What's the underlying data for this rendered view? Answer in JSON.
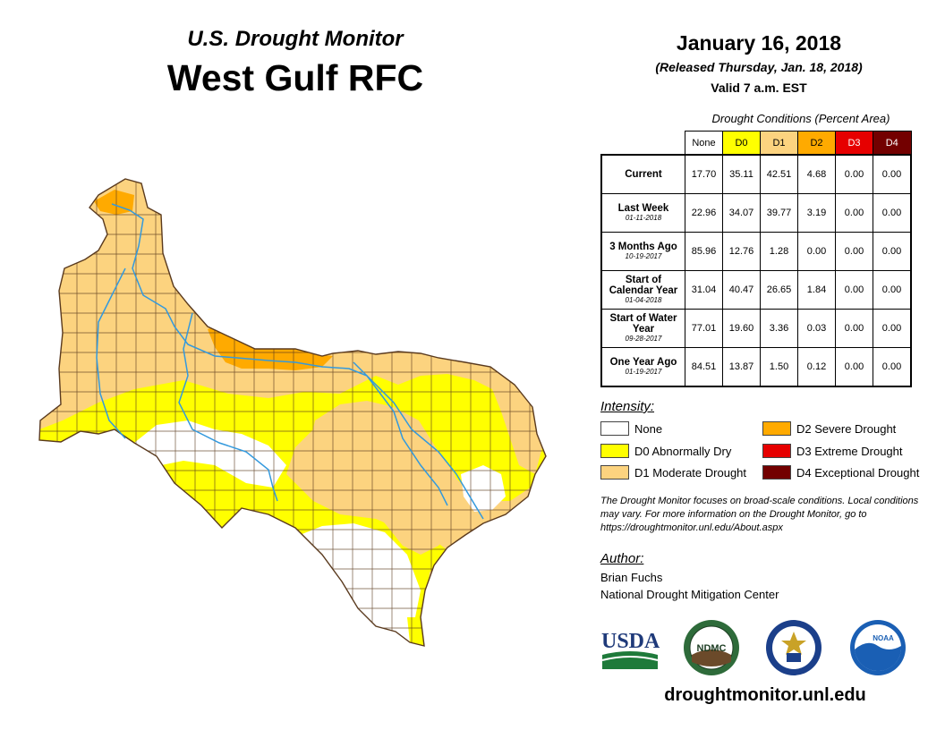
{
  "header": {
    "subtitle": "U.S. Drought Monitor",
    "title": "West Gulf RFC",
    "date": "January 16, 2018",
    "released": "(Released Thursday, Jan. 18, 2018)",
    "valid": "Valid 7 a.m. EST"
  },
  "table": {
    "caption": "Drought Conditions (Percent Area)",
    "columns": [
      {
        "label": "None",
        "color": "#ffffff",
        "text_color": "#000000"
      },
      {
        "label": "D0",
        "color": "#ffff00",
        "text_color": "#000000"
      },
      {
        "label": "D1",
        "color": "#fcd37f",
        "text_color": "#000000"
      },
      {
        "label": "D2",
        "color": "#ffaa00",
        "text_color": "#000000"
      },
      {
        "label": "D3",
        "color": "#e60000",
        "text_color": "#ffffff"
      },
      {
        "label": "D4",
        "color": "#730000",
        "text_color": "#ffffff"
      }
    ],
    "rows": [
      {
        "label": "Current",
        "date": "",
        "values": [
          "17.70",
          "35.11",
          "42.51",
          "4.68",
          "0.00",
          "0.00"
        ]
      },
      {
        "label": "Last Week",
        "date": "01-11-2018",
        "values": [
          "22.96",
          "34.07",
          "39.77",
          "3.19",
          "0.00",
          "0.00"
        ]
      },
      {
        "label": "3 Months Ago",
        "date": "10-19-2017",
        "values": [
          "85.96",
          "12.76",
          "1.28",
          "0.00",
          "0.00",
          "0.00"
        ]
      },
      {
        "label": "Start of Calendar Year",
        "date": "01-04-2018",
        "values": [
          "31.04",
          "40.47",
          "26.65",
          "1.84",
          "0.00",
          "0.00"
        ]
      },
      {
        "label": "Start of Water Year",
        "date": "09-28-2017",
        "values": [
          "77.01",
          "19.60",
          "3.36",
          "0.03",
          "0.00",
          "0.00"
        ]
      },
      {
        "label": "One Year Ago",
        "date": "01-19-2017",
        "values": [
          "84.51",
          "13.87",
          "1.50",
          "0.12",
          "0.00",
          "0.00"
        ]
      }
    ]
  },
  "legend": {
    "title": "Intensity:",
    "items": [
      {
        "label": "None",
        "color": "#ffffff"
      },
      {
        "label": "D0 Abnormally Dry",
        "color": "#ffff00"
      },
      {
        "label": "D1 Moderate Drought",
        "color": "#fcd37f"
      },
      {
        "label": "D2 Severe Drought",
        "color": "#ffaa00"
      },
      {
        "label": "D3 Extreme Drought",
        "color": "#e60000"
      },
      {
        "label": "D4 Exceptional Drought",
        "color": "#730000"
      }
    ]
  },
  "note": "The Drought Monitor focuses on broad-scale conditions. Local conditions may vary. For more information on the Drought Monitor, go to https://droughtmonitor.unl.edu/About.aspx",
  "author": {
    "title": "Author:",
    "name": "Brian Fuchs",
    "org": "National Drought Mitigation Center"
  },
  "logos": {
    "usda": "USDA",
    "ndmc": "NDMC",
    "noaa": "NOAA"
  },
  "website": "droughtmonitor.unl.edu",
  "map_colors": {
    "none": "#ffffff",
    "d0": "#ffff00",
    "d1": "#fcd37f",
    "d2": "#ffaa00",
    "river": "#3399dd",
    "border": "#5a3a1e"
  }
}
